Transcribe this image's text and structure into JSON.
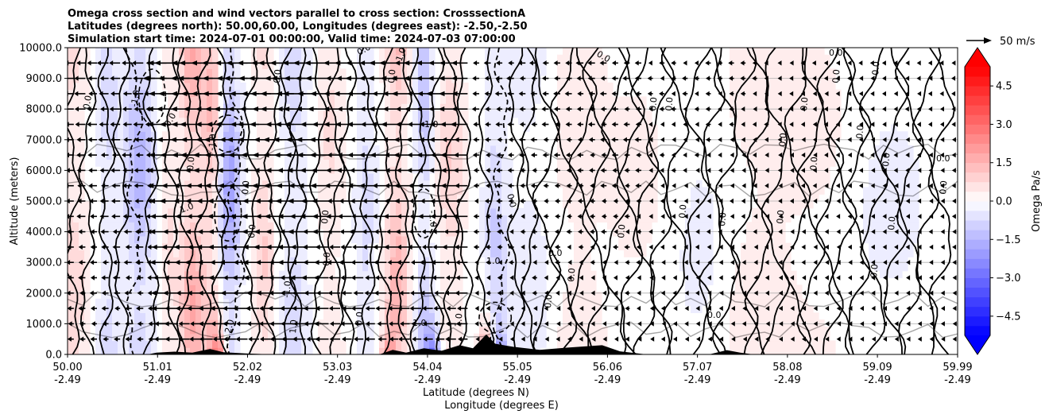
{
  "chart_data": {
    "type": "heatmap",
    "title_lines": [
      "Omega cross section and wind vectors parallel to cross section: CrosssectionA",
      "Latitudes (degrees north): 50.00,60.00, Longitudes (degrees east): -2.50,-2.50",
      "Simulation start time: 2024-07-01 00:00:00, Valid time: 2024-07-03 07:00:00"
    ],
    "ylabel": "Altitude (meters)",
    "xlabel_lat": "Latitude (degrees N)",
    "xlabel_lon": "Longitude (degrees E)",
    "x_ticks": [
      {
        "lat": "50.00",
        "lon": "-2.49"
      },
      {
        "lat": "51.01",
        "lon": "-2.49"
      },
      {
        "lat": "52.02",
        "lon": "-2.49"
      },
      {
        "lat": "53.03",
        "lon": "-2.49"
      },
      {
        "lat": "54.04",
        "lon": "-2.49"
      },
      {
        "lat": "55.05",
        "lon": "-2.49"
      },
      {
        "lat": "56.06",
        "lon": "-2.49"
      },
      {
        "lat": "57.07",
        "lon": "-2.49"
      },
      {
        "lat": "58.08",
        "lon": "-2.49"
      },
      {
        "lat": "59.09",
        "lon": "-2.49"
      },
      {
        "lat": "59.99",
        "lon": "-2.49"
      }
    ],
    "x_range": [
      50.0,
      59.99
    ],
    "y_range": [
      0,
      10000
    ],
    "y_ticks": [
      "0.0",
      "1000.0",
      "2000.0",
      "3000.0",
      "4000.0",
      "5000.0",
      "6000.0",
      "7000.0",
      "8000.0",
      "9000.0",
      "10000.0"
    ],
    "grid": "horizontal",
    "colorbar": {
      "label": "Omega Pa/s",
      "range": [
        -5.25,
        5.25
      ],
      "ticks": [
        "4.5",
        "3.0",
        "1.5",
        "0.0",
        "−1.5",
        "−3.0",
        "−4.5"
      ],
      "tick_values": [
        4.5,
        3.0,
        1.5,
        0.0,
        -1.5,
        -3.0,
        -4.5
      ],
      "colormap": "bwr",
      "extend": "both"
    },
    "quiver_key": "50 m/s",
    "contour_labels": [
      "0.0",
      "-1.0",
      "1.0",
      "2.0"
    ],
    "omega_bands": [
      {
        "lat": 50.05,
        "w": 0.18,
        "v": 0.8
      },
      {
        "lat": 50.45,
        "w": 0.12,
        "v": -0.7
      },
      {
        "lat": 50.8,
        "w": 0.18,
        "v": -1.4
      },
      {
        "lat": 51.12,
        "w": 0.1,
        "v": 0.6
      },
      {
        "lat": 51.4,
        "w": 0.15,
        "v": 1.6
      },
      {
        "lat": 51.62,
        "w": 0.1,
        "v": 1.2
      },
      {
        "lat": 51.82,
        "w": 0.12,
        "v": -1.8
      },
      {
        "lat": 52.2,
        "w": 0.12,
        "v": 0.9
      },
      {
        "lat": 52.55,
        "w": 0.15,
        "v": -0.8
      },
      {
        "lat": 52.95,
        "w": 0.15,
        "v": 0.6
      },
      {
        "lat": 53.35,
        "w": 0.12,
        "v": -0.7
      },
      {
        "lat": 53.7,
        "w": 0.14,
        "v": 1.4
      },
      {
        "lat": 54.0,
        "w": 0.1,
        "v": -1.2
      },
      {
        "lat": 54.3,
        "w": 0.15,
        "v": 0.9
      },
      {
        "lat": 54.8,
        "w": 0.12,
        "v": -0.9
      },
      {
        "lat": 55.2,
        "w": 0.3,
        "v": -0.4
      },
      {
        "lat": 55.7,
        "w": 0.3,
        "v": 0.5
      },
      {
        "lat": 56.4,
        "w": 0.4,
        "v": 0.3
      },
      {
        "lat": 57.1,
        "w": 0.35,
        "v": -0.3
      },
      {
        "lat": 57.7,
        "w": 0.4,
        "v": 0.4
      },
      {
        "lat": 58.4,
        "w": 0.5,
        "v": 0.3
      },
      {
        "lat": 59.2,
        "w": 0.5,
        "v": -0.3
      }
    ],
    "surface_hotspots": [
      {
        "lat": 51.7,
        "v": 2.8
      },
      {
        "lat": 53.6,
        "v": 2.0
      },
      {
        "lat": 54.1,
        "v": -3.0
      },
      {
        "lat": 54.7,
        "v": 3.5
      },
      {
        "lat": 54.85,
        "v": -2.5
      }
    ],
    "terrain": [
      {
        "lat": 50.0,
        "h": 0
      },
      {
        "lat": 50.9,
        "h": 0
      },
      {
        "lat": 51.0,
        "h": 60
      },
      {
        "lat": 51.2,
        "h": 90
      },
      {
        "lat": 51.4,
        "h": 60
      },
      {
        "lat": 51.6,
        "h": 180
      },
      {
        "lat": 51.75,
        "h": 70
      },
      {
        "lat": 52.0,
        "h": 30
      },
      {
        "lat": 52.3,
        "h": 0
      },
      {
        "lat": 53.5,
        "h": 0
      },
      {
        "lat": 53.65,
        "h": 150
      },
      {
        "lat": 53.8,
        "h": 60
      },
      {
        "lat": 54.0,
        "h": 200
      },
      {
        "lat": 54.2,
        "h": 120
      },
      {
        "lat": 54.4,
        "h": 300
      },
      {
        "lat": 54.55,
        "h": 200
      },
      {
        "lat": 54.7,
        "h": 650
      },
      {
        "lat": 54.8,
        "h": 350
      },
      {
        "lat": 55.0,
        "h": 250
      },
      {
        "lat": 55.3,
        "h": 150
      },
      {
        "lat": 55.6,
        "h": 220
      },
      {
        "lat": 56.0,
        "h": 300
      },
      {
        "lat": 56.2,
        "h": 100
      },
      {
        "lat": 56.5,
        "h": 0
      },
      {
        "lat": 57.2,
        "h": 0
      },
      {
        "lat": 57.4,
        "h": 140
      },
      {
        "lat": 57.55,
        "h": 60
      },
      {
        "lat": 57.7,
        "h": 0
      },
      {
        "lat": 59.99,
        "h": 0
      }
    ],
    "wind_profile": [
      {
        "lat_max": 51.0,
        "u": -12
      },
      {
        "lat_max": 53.0,
        "u": -25
      },
      {
        "lat_max": 54.5,
        "u": -20
      },
      {
        "lat_max": 56.5,
        "u": -8
      },
      {
        "lat_max": 58.0,
        "u": -6
      },
      {
        "lat_max": 60.0,
        "u": -3
      }
    ]
  }
}
